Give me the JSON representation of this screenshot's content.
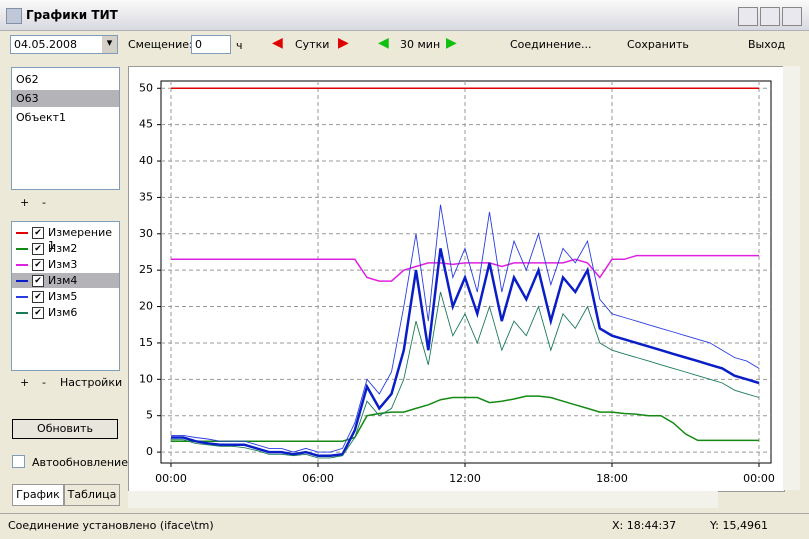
{
  "window": {
    "title": "Графики ТИТ"
  },
  "toolbar": {
    "date": "04.05.2008",
    "offset_label": "Смещение:",
    "offset_value": "0",
    "offset_unit": "ч",
    "day": "Сутки",
    "half_hour": "30 мин",
    "connect": "Соединение...",
    "save": "Сохранить",
    "exit": "Выход"
  },
  "objects": {
    "items": [
      "О62",
      "О63",
      "Объект1"
    ],
    "add": "+",
    "remove": "-"
  },
  "series_panel": {
    "add": "+",
    "remove": "-",
    "settings": "Настройки"
  },
  "refresh": "Обновить",
  "auto_refresh": "Автообновление",
  "tabs": [
    "График",
    "Таблица"
  ],
  "status": {
    "connection": "Соединение установлено  (iface\\tm)",
    "x": "X: 18:44:37",
    "y": "Y: 15,4961"
  },
  "chart_data": {
    "type": "line",
    "x": [
      0,
      0.5,
      1,
      1.5,
      2,
      2.5,
      3,
      3.5,
      4,
      4.5,
      5,
      5.5,
      6,
      6.5,
      7,
      7.5,
      8,
      8.5,
      9,
      9.5,
      10,
      10.5,
      11,
      11.5,
      12,
      12.5,
      13,
      13.5,
      14,
      14.5,
      15,
      15.5,
      16,
      16.5,
      17,
      17.5,
      18,
      18.5,
      19,
      19.5,
      20,
      20.5,
      21,
      21.5,
      22,
      22.5,
      23,
      23.5,
      24
    ],
    "xlim": [
      0,
      24
    ],
    "xticks": [
      {
        "value": 0,
        "label": "00:00"
      },
      {
        "value": 6,
        "label": "06:00"
      },
      {
        "value": 12,
        "label": "12:00"
      },
      {
        "value": 18,
        "label": "18:00"
      },
      {
        "value": 24,
        "label": "00:00"
      }
    ],
    "ylim": [
      -1.5,
      51
    ],
    "yticks": [
      0,
      5,
      10,
      15,
      20,
      25,
      30,
      35,
      40,
      45,
      50
    ],
    "grid": true,
    "series": [
      {
        "name": "Измерение 1",
        "color": "#e00000",
        "values": [
          50,
          50,
          50,
          50,
          50,
          50,
          50,
          50,
          50,
          50,
          50,
          50,
          50,
          50,
          50,
          50,
          50,
          50,
          50,
          50,
          50,
          50,
          50,
          50,
          50,
          50,
          50,
          50,
          50,
          50,
          50,
          50,
          50,
          50,
          50,
          50,
          50,
          50,
          50,
          50,
          50,
          50,
          50,
          50,
          50,
          50,
          50,
          50,
          50
        ]
      },
      {
        "name": "Изм2",
        "color": "#148a14",
        "values": [
          1.5,
          1.5,
          1.5,
          1.5,
          1.5,
          1.5,
          1.5,
          1.5,
          1.5,
          1.5,
          1.5,
          1.5,
          1.5,
          1.5,
          1.5,
          2,
          5,
          5.3,
          5.5,
          5.5,
          6,
          6.5,
          7.2,
          7.5,
          7.5,
          7.5,
          6.8,
          7,
          7.3,
          7.7,
          7.7,
          7.5,
          7,
          6.5,
          6,
          5.5,
          5.5,
          5.3,
          5.2,
          5,
          5,
          4,
          2.5,
          1.6,
          1.6,
          1.6,
          1.6,
          1.6,
          1.6
        ]
      },
      {
        "name": "Изм3",
        "color": "#e020e0",
        "values": [
          26.5,
          26.5,
          26.5,
          26.5,
          26.5,
          26.5,
          26.5,
          26.5,
          26.5,
          26.5,
          26.5,
          26.5,
          26.5,
          26.5,
          26.5,
          26.5,
          24,
          23.5,
          23.5,
          25,
          25.5,
          26,
          26,
          25.8,
          26,
          26,
          26,
          25.5,
          26,
          26,
          26,
          26,
          26,
          26.5,
          26,
          24,
          26.5,
          26.5,
          27,
          27,
          27,
          27,
          27,
          27,
          27,
          27,
          27,
          27,
          27
        ]
      },
      {
        "name": "Изм4",
        "color": "#0a1ec8",
        "values": [
          2,
          2,
          1.5,
          1.2,
          1,
          1,
          1,
          0.5,
          0,
          0,
          -0.3,
          0,
          -0.5,
          -0.5,
          -0.3,
          3,
          9,
          6,
          8,
          14,
          25,
          14,
          28,
          20,
          24,
          19,
          26,
          18,
          24,
          21,
          25,
          18,
          24,
          22,
          25,
          17,
          16,
          15.5,
          15,
          14.5,
          14,
          13.5,
          13,
          12.5,
          12,
          11.5,
          10.5,
          10,
          9.5
        ]
      },
      {
        "name": "Изм5",
        "color": "#2a3ee0",
        "values": [
          2.3,
          2.3,
          2,
          1.8,
          1.5,
          1.5,
          1.5,
          1,
          0.5,
          0.5,
          0,
          0.5,
          0,
          0,
          0.5,
          4,
          10,
          8,
          11,
          20,
          30,
          18,
          34,
          24,
          28,
          22,
          33,
          22,
          29,
          25,
          30,
          23,
          28,
          26,
          29,
          21,
          19,
          18.5,
          18,
          17.5,
          17,
          16.5,
          16,
          15.5,
          15,
          14,
          13,
          12.5,
          11.5
        ]
      },
      {
        "name": "Изм6",
        "color": "#1a7a5a",
        "values": [
          1.7,
          1.7,
          1.2,
          1,
          0.8,
          0.8,
          0.6,
          0.2,
          -0.3,
          -0.3,
          -0.5,
          -0.3,
          -0.8,
          -0.8,
          -0.5,
          2,
          7,
          5,
          6,
          10,
          18,
          12,
          22,
          16,
          19,
          15,
          20,
          14,
          18,
          16,
          20,
          14,
          19,
          17,
          20,
          15,
          14,
          13.5,
          13,
          12.5,
          12,
          11.5,
          11,
          10.5,
          10,
          9.5,
          8.5,
          8,
          7.5
        ]
      }
    ]
  }
}
